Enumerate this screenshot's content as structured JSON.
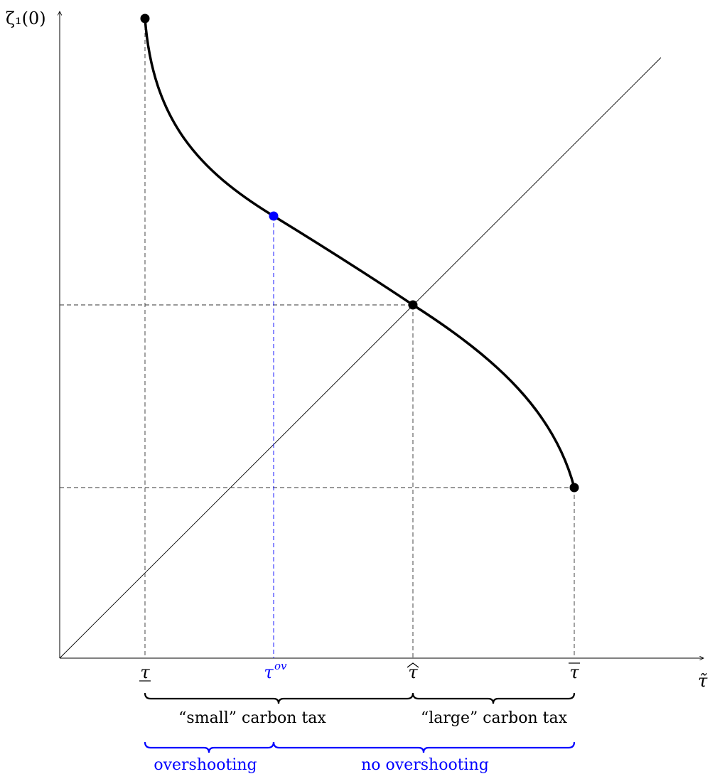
{
  "axes": {
    "y_label": "ζ₁(0)",
    "x_label": "τ̃"
  },
  "ticks": {
    "tau_low": "τ",
    "tau_ov": "τ",
    "tau_ov_sup": "ov",
    "tau_hat": "τ",
    "tau_bar": "τ"
  },
  "braces": {
    "small": "“small” carbon tax",
    "large": "“large” carbon tax",
    "overshooting": "overshooting",
    "no_overshooting": "no overshooting"
  },
  "colors": {
    "black": "#000000",
    "blue": "#0000ff",
    "dashed": "#333333"
  }
}
